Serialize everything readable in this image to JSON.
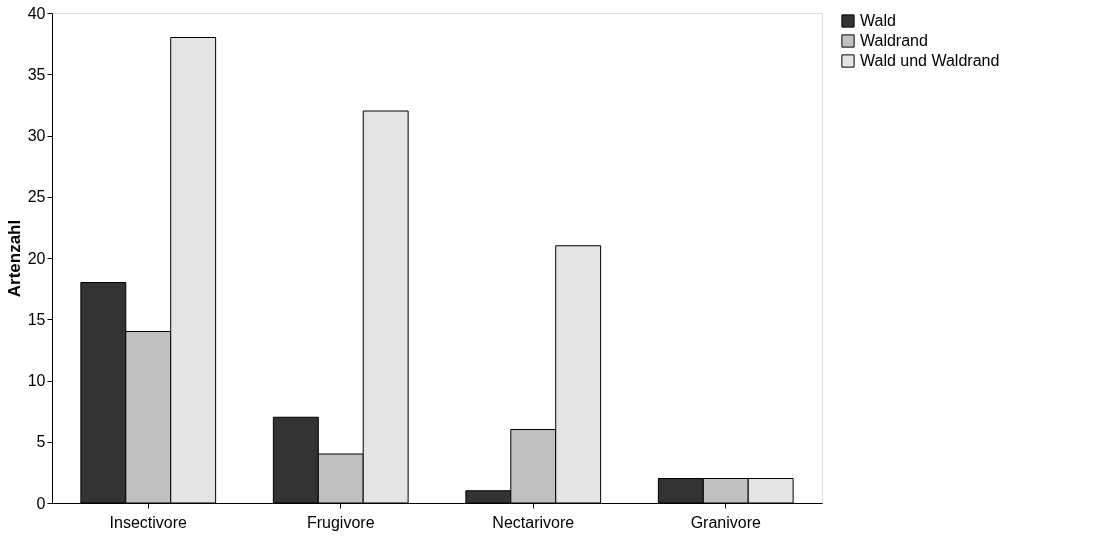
{
  "chart_data": {
    "type": "bar",
    "ylabel": "Artenzahl",
    "categories": [
      "Insectivore",
      "Frugivore",
      "Nectarivore",
      "Granivore"
    ],
    "series": [
      {
        "name": "Wald",
        "color": "#333333",
        "values": [
          18,
          7,
          1,
          2
        ]
      },
      {
        "name": "Waldrand",
        "color": "#c0c0c0",
        "values": [
          14,
          4,
          6,
          2
        ]
      },
      {
        "name": "Wald und Waldrand",
        "color": "#e4e4e4",
        "values": [
          38,
          32,
          21,
          2
        ]
      }
    ],
    "ylim": [
      0,
      40
    ],
    "yticks": [
      0,
      5,
      10,
      15,
      20,
      25,
      30,
      35,
      40
    ],
    "grid": false,
    "legend": "right"
  }
}
